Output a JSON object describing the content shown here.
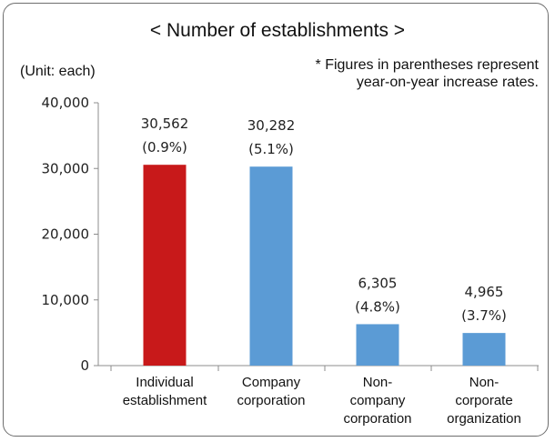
{
  "title": "< Number of establishments >",
  "unit_label": "(Unit: each)",
  "note": [
    "* Figures in parentheses represent",
    "year-on-year increase rates."
  ],
  "colors": {
    "highlight": "#c8191a",
    "default": "#5b9bd5"
  },
  "chart_data": {
    "type": "bar",
    "categories": [
      [
        "Individual",
        "establishment"
      ],
      [
        "Company",
        "corporation"
      ],
      [
        "Non-",
        "company",
        "corporation"
      ],
      [
        "Non-",
        "corporate",
        "organization"
      ]
    ],
    "values": [
      30562,
      30282,
      6305,
      4965
    ],
    "value_labels": [
      "30,562",
      "30,282",
      "6,305",
      "4,965"
    ],
    "rate_labels": [
      "(0.9%)",
      "(5.1%)",
      "(4.8%)",
      "(3.7%)"
    ],
    "highlight_index": 0,
    "ylim": [
      0,
      40000
    ],
    "yticks": [
      0,
      10000,
      20000,
      30000,
      40000
    ],
    "ytick_labels": [
      "0",
      "10,000",
      "20,000",
      "30,000",
      "40,000"
    ],
    "grid": false
  }
}
